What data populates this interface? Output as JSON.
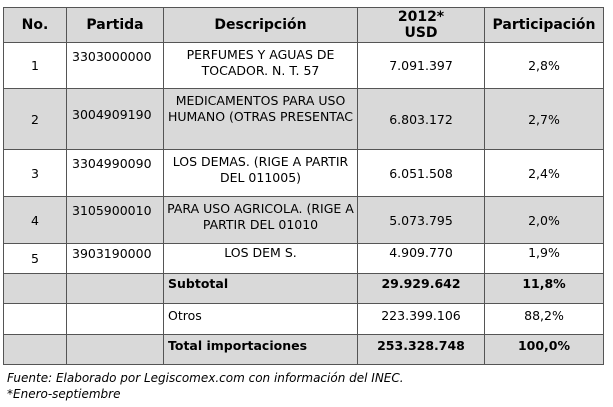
{
  "table": {
    "headers": [
      "No.",
      "Partida",
      "Descripción",
      "2012*\nUSD",
      "Participación"
    ],
    "rows": [
      {
        "no": "1",
        "partida": "3303000000",
        "descripcion": "PERFUMES Y AGUAS DE TOCADOR.   N. T. 57",
        "usd": "7.091.397",
        "part": "2,8%"
      },
      {
        "no": "2",
        "partida": "3004909190",
        "descripcion": "MEDICAMENTOS PARA USO HUMANO (OTRAS PRESENTAC",
        "usd": "6.803.172",
        "part": "2,7%"
      },
      {
        "no": "3",
        "partida": "3304990090",
        "descripcion": "LOS DEMAS.  (RIGE A PARTIR DEL 011005)",
        "usd": "6.051.508",
        "part": "2,4%"
      },
      {
        "no": "4",
        "partida": "3105900010",
        "descripcion": "PARA USO AGRICOLA. (RIGE A PARTIR DEL 01010",
        "usd": "5.073.795",
        "part": "2,0%"
      },
      {
        "no": "5",
        "partida": "3903190000",
        "descripcion": "LOS DEM S.",
        "usd": "4.909.770",
        "part": "1,9%"
      }
    ],
    "subtotal": {
      "label": "Subtotal",
      "usd": "29.929.642",
      "part": "11,8%"
    },
    "otros": {
      "label": "Otros",
      "usd": "223.399.106",
      "part": "88,2%"
    },
    "total": {
      "label": "Total importaciones",
      "usd": "253.328.748",
      "part": "100,0%"
    }
  },
  "footer": {
    "source": "Fuente: Elaborado por Legiscomex.com con información del INEC.",
    "note": "*Enero-septiembre"
  }
}
